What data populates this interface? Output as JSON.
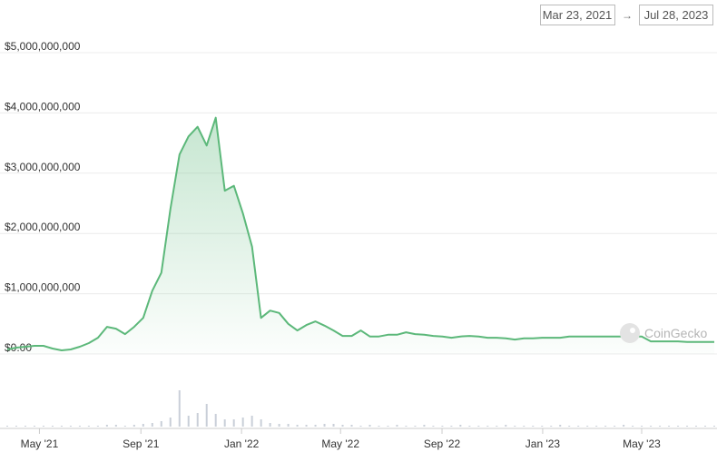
{
  "chart_data": {
    "type": "area",
    "xlim": [
      "Mar 23, 2021",
      "Jul 28, 2023"
    ],
    "range_separator": "→",
    "watermark": "CoinGecko",
    "xticks": [
      {
        "value": "2021-05",
        "label": "May '21"
      },
      {
        "value": "2021-09",
        "label": "Sep '21"
      },
      {
        "value": "2022-01",
        "label": "Jan '22"
      },
      {
        "value": "2022-05",
        "label": "May '22"
      },
      {
        "value": "2022-09",
        "label": "Sep '22"
      },
      {
        "value": "2023-01",
        "label": "Jan '23"
      },
      {
        "value": "2023-05",
        "label": "May '23"
      }
    ],
    "ylim": [
      0,
      5000000000
    ],
    "yticks": [
      {
        "value": 0,
        "label": "$0.00"
      },
      {
        "value": 1000000000,
        "label": "$1,000,000,000"
      },
      {
        "value": 2000000000,
        "label": "$2,000,000,000"
      },
      {
        "value": 3000000000,
        "label": "$3,000,000,000"
      },
      {
        "value": 4000000000,
        "label": "$4,000,000,000"
      },
      {
        "value": 5000000000,
        "label": "$5,000,000,000"
      }
    ],
    "y2lim": [
      0,
      50
    ],
    "grid": true,
    "series": [
      {
        "color": "#5cb87a",
        "values": [
          75000000,
          105000000,
          120000000,
          135000000,
          135000000,
          90000000,
          60000000,
          75000000,
          120000000,
          180000000,
          270000000,
          450000000,
          420000000,
          330000000,
          450000000,
          600000000,
          1050000000,
          1350000000,
          2410000000,
          3310000000,
          3610000000,
          3770000000,
          3460000000,
          3920000000,
          2710000000,
          2790000000,
          2330000000,
          1780000000,
          600000000,
          720000000,
          680000000,
          500000000,
          390000000,
          480000000,
          540000000,
          470000000,
          390000000,
          300000000,
          300000000,
          390000000,
          290000000,
          290000000,
          320000000,
          320000000,
          360000000,
          330000000,
          320000000,
          300000000,
          290000000,
          270000000,
          290000000,
          300000000,
          290000000,
          270000000,
          270000000,
          260000000,
          240000000,
          260000000,
          260000000,
          270000000,
          270000000,
          270000000,
          290000000,
          290000000,
          290000000,
          290000000,
          290000000,
          290000000,
          290000000,
          290000000,
          290000000,
          210000000,
          210000000,
          210000000,
          210000000,
          200000000,
          200000000,
          200000000,
          200000000
        ]
      },
      {
        "axis": "y2",
        "type": "bar",
        "color": "#c9cfd8",
        "values": [
          1,
          1,
          1,
          1,
          1,
          1,
          1,
          1,
          1,
          1,
          1,
          2,
          2,
          1,
          2,
          3,
          4,
          6,
          10,
          40,
          12,
          15,
          25,
          14,
          8,
          8,
          10,
          12,
          8,
          4,
          3,
          3,
          2,
          2,
          2,
          3,
          3,
          2,
          2,
          1,
          2,
          1,
          1,
          2,
          1,
          1,
          2,
          1,
          1,
          1,
          2,
          1,
          1,
          1,
          1,
          2,
          1,
          1,
          1,
          1,
          1,
          2,
          1,
          1,
          1,
          1,
          1,
          1,
          2,
          1,
          1,
          1,
          1,
          1,
          1,
          1,
          1,
          1,
          1
        ]
      }
    ]
  }
}
